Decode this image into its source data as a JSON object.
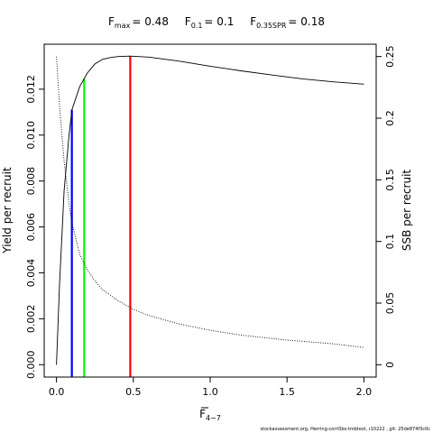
{
  "chart_data": {
    "type": "line",
    "title_parts": [
      {
        "symbol": "F",
        "sub": "max",
        "value": "= 0.48"
      },
      {
        "symbol": "F",
        "sub": "0.1",
        "value": "= 0.1"
      },
      {
        "symbol": "F",
        "sub": "0.35SPR",
        "value": "= 0.18"
      }
    ],
    "xlabel": {
      "symbol": "F",
      "sub": "4−7"
    },
    "ylabel_left": "Yield per recruit",
    "ylabel_right": "SSB per recruit",
    "xlim": [
      -0.08,
      2.08
    ],
    "ylim_left": [
      -0.00054,
      0.01396
    ],
    "ylim_right": [
      -0.01,
      0.26
    ],
    "x_ticks": [
      0,
      0.5,
      1,
      1.5,
      2
    ],
    "x_tick_labels": [
      "0.0",
      "0.5",
      "1.0",
      "1.5",
      "2.0"
    ],
    "y_left_ticks": [
      0,
      0.002,
      0.004,
      0.006,
      0.008,
      0.01,
      0.012
    ],
    "y_left_tick_labels": [
      "0.000",
      "0.002",
      "0.004",
      "0.006",
      "0.008",
      "0.010",
      "0.012"
    ],
    "y_right_ticks": [
      0,
      0.05,
      0.1,
      0.15,
      0.2,
      0.25
    ],
    "y_right_tick_labels": [
      "0",
      "0.05",
      "0.1",
      "0.15",
      "0.2",
      "0.25"
    ],
    "series": [
      {
        "role": "yield",
        "axis": "left",
        "style": "solid",
        "color": "#000000",
        "x": [
          0,
          0.02,
          0.05,
          0.08,
          0.1,
          0.15,
          0.2,
          0.25,
          0.3,
          0.35,
          0.4,
          0.48,
          0.6,
          0.8,
          1.0,
          1.2,
          1.4,
          1.6,
          1.8,
          2.0
        ],
        "y": [
          0.0,
          0.0035,
          0.0076,
          0.0099,
          0.0111,
          0.0121,
          0.0127,
          0.0131,
          0.0133,
          0.01338,
          0.01342,
          0.01344,
          0.0134,
          0.01322,
          0.013,
          0.0128,
          0.01262,
          0.01245,
          0.01232,
          0.01222
        ]
      },
      {
        "role": "ssb",
        "axis": "right",
        "style": "dotted",
        "color": "#000000",
        "x": [
          0,
          0.02,
          0.05,
          0.08,
          0.1,
          0.15,
          0.18,
          0.2,
          0.25,
          0.3,
          0.4,
          0.5,
          0.6,
          0.8,
          1.0,
          1.2,
          1.5,
          1.8,
          2.0
        ],
        "y": [
          0.25,
          0.21,
          0.165,
          0.132,
          0.115,
          0.09,
          0.082,
          0.077,
          0.068,
          0.061,
          0.052,
          0.045,
          0.04,
          0.033,
          0.028,
          0.024,
          0.02,
          0.017,
          0.014
        ]
      }
    ],
    "reference_lines": [
      {
        "name": "F0.35SPR",
        "x": 0.18,
        "color": "#00ff00"
      },
      {
        "name": "F0.1",
        "x": 0.1,
        "color": "#0000ff"
      },
      {
        "name": "Fmax",
        "x": 0.48,
        "color": "#ff0000"
      }
    ],
    "grid": false,
    "legend": "none"
  },
  "footnote": "stockassessment.org, Herring-corrObs-tmbtest, r10222 , git: 25de874f3c0c"
}
